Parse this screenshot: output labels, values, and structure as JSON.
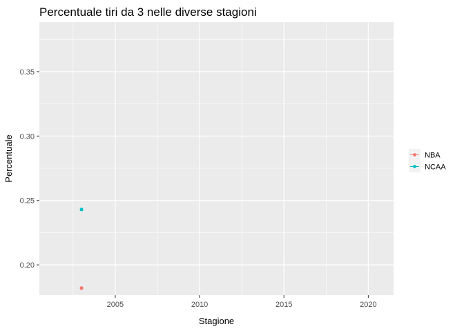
{
  "chart_data": {
    "type": "scatter",
    "title": "Percentuale tiri da 3 nelle diverse stagioni",
    "xlabel": "Stagione",
    "ylabel": "Percentuale",
    "xlim": [
      2000.5,
      2021.5
    ],
    "ylim": [
      0.1765,
      0.3885
    ],
    "x_ticks": [
      2005,
      2010,
      2015,
      2020
    ],
    "y_ticks": [
      0.2,
      0.25,
      0.3,
      0.35
    ],
    "grid": true,
    "legend_position": "right",
    "series": [
      {
        "name": "NBA",
        "color": "#F8766D",
        "points": [
          {
            "x": 2003,
            "y": 0.182
          }
        ]
      },
      {
        "name": "NCAA",
        "color": "#00BFC4",
        "points": [
          {
            "x": 2003,
            "y": 0.243
          }
        ]
      }
    ]
  }
}
